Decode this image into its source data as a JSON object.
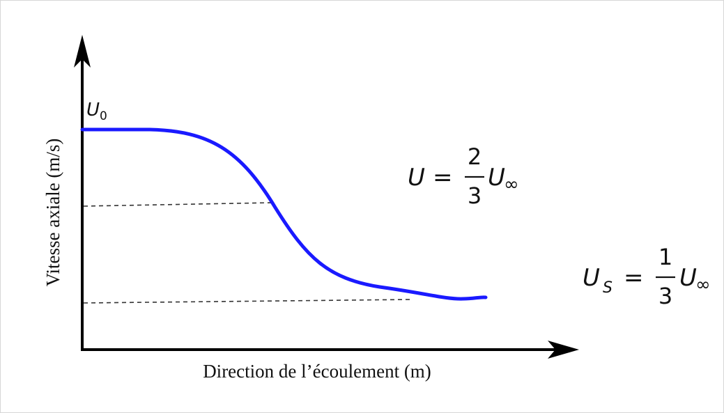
{
  "diagram": {
    "y_axis_label": "Vitesse axiale (m/s)",
    "x_axis_label": "Direction de l’écoulement (m)",
    "u0_label": {
      "base": "U",
      "sub": "0"
    },
    "eq_upper": {
      "lhs": "U",
      "eq": "=",
      "num": "2",
      "den": "3",
      "var": "U",
      "sub": "∞"
    },
    "eq_lower": {
      "lhs": "U",
      "lhs_sub": "S",
      "eq": "=",
      "num": "1",
      "den": "3",
      "var": "U",
      "sub": "∞"
    },
    "colors": {
      "curve": "#1a1aff",
      "axis": "#000000",
      "dashed": "#333333",
      "frame": "#d6d6d6"
    }
  }
}
